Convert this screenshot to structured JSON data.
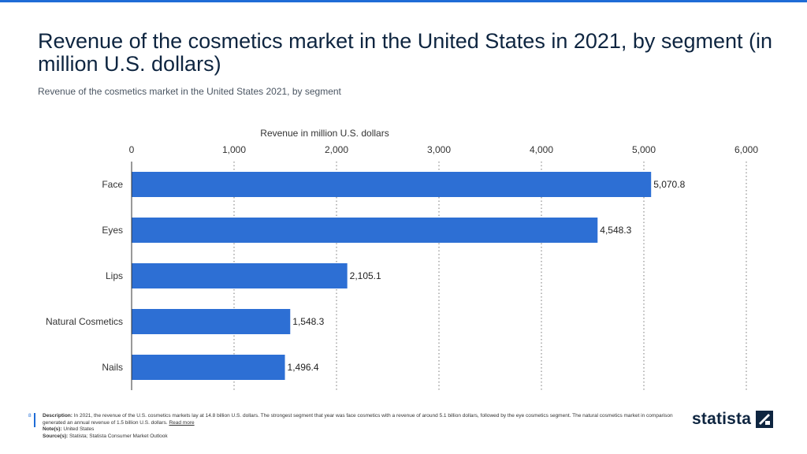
{
  "header": {
    "title": "Revenue of the cosmetics market in the United States in 2021, by segment (in million U.S. dollars)",
    "subtitle": "Revenue of the cosmetics market in the United States 2021, by segment"
  },
  "chart_data": {
    "type": "bar",
    "orientation": "horizontal",
    "categories": [
      "Face",
      "Eyes",
      "Lips",
      "Natural Cosmetics",
      "Nails"
    ],
    "values": [
      5070.8,
      4548.3,
      2105.1,
      1548.3,
      1496.4
    ],
    "value_labels": [
      "5,070.8",
      "4,548.3",
      "2,105.1",
      "1,548.3",
      "1,496.4"
    ],
    "xlabel": "Revenue in million U.S. dollars",
    "xlim": [
      0,
      6000
    ],
    "ticks": [
      0,
      1000,
      2000,
      3000,
      4000,
      5000,
      6000
    ],
    "tick_labels": [
      "0",
      "1,000",
      "2,000",
      "3,000",
      "4,000",
      "5,000",
      "6,000"
    ],
    "bar_color": "#2d6fd4",
    "grid": "dotted vertical"
  },
  "footer": {
    "page_number": "8",
    "description_label": "Description:",
    "description": "In 2021, the revenue of the U.S. cosmetics markets lay at 14.8 billion U.S. dollars. The strongest segment that year was face cosmetics with a revenue of around 5.1 billion dollars, followed by the eye cosmetics segment. The natural cosmetics market in comparison generated an annual revenue of 1.5 billion U.S. dollars.",
    "read_more": "Read more",
    "notes_label": "Note(s):",
    "notes": "United States",
    "source_label": "Source(s):",
    "source": "Statista; Statista Consumer Market Outlook"
  },
  "brand": {
    "logo_text": "statista",
    "accent": "#1f6cd6"
  }
}
